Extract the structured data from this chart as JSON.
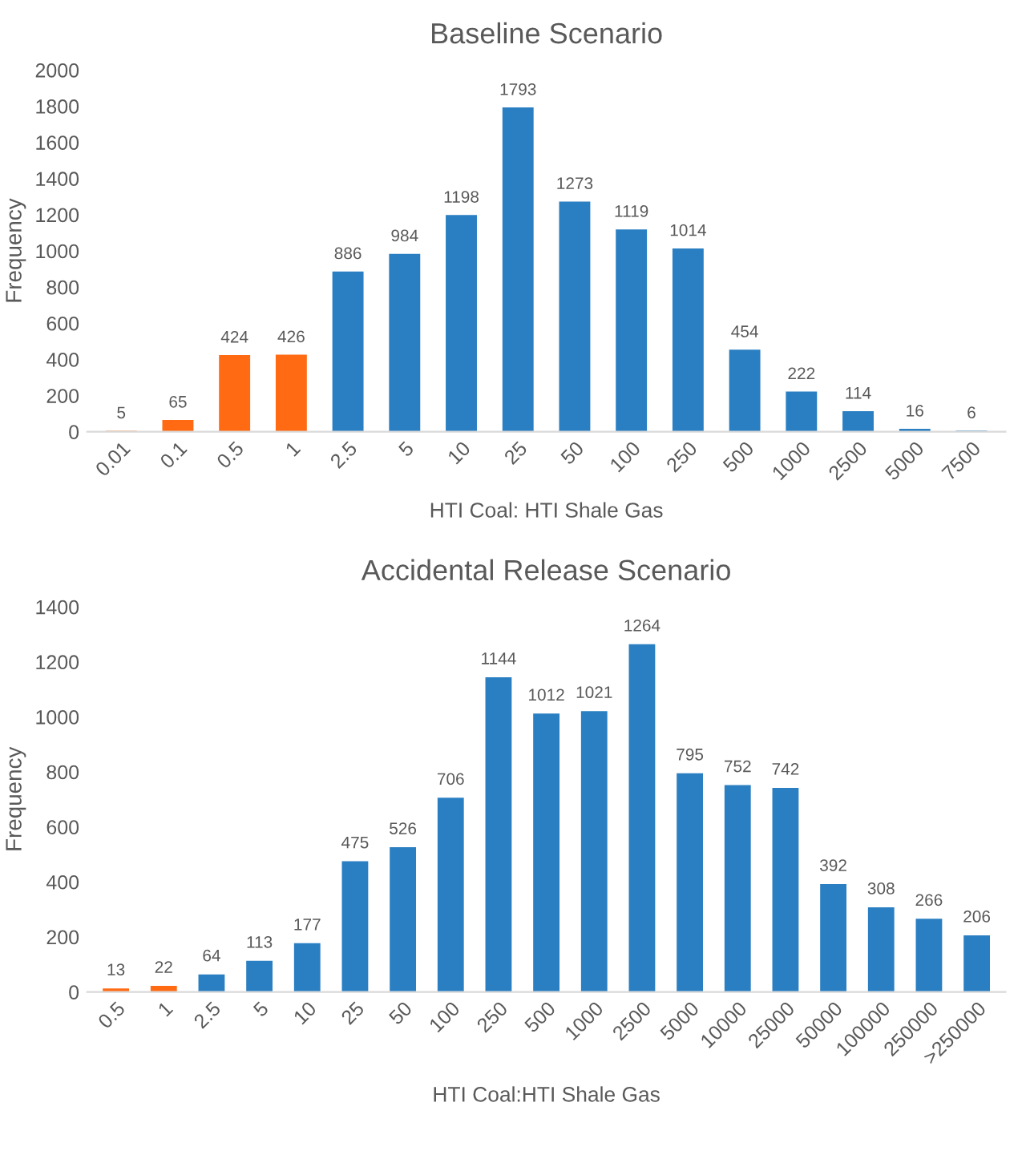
{
  "chart_data": [
    {
      "type": "bar",
      "title": "Baseline Scenario",
      "xlabel": "HTI Coal: HTI Shale Gas",
      "ylabel": "Frequency",
      "categories": [
        "0.01",
        "0.1",
        "0.5",
        "1",
        "2.5",
        "5",
        "10",
        "25",
        "50",
        "100",
        "250",
        "500",
        "1000",
        "2500",
        "5000",
        "7500"
      ],
      "values": [
        5,
        65,
        424,
        426,
        886,
        984,
        1198,
        1793,
        1273,
        1119,
        1014,
        454,
        222,
        114,
        16,
        6
      ],
      "colors": [
        "#ff6a13",
        "#ff6a13",
        "#ff6a13",
        "#ff6a13",
        "#2a7fc2",
        "#2a7fc2",
        "#2a7fc2",
        "#2a7fc2",
        "#2a7fc2",
        "#2a7fc2",
        "#2a7fc2",
        "#2a7fc2",
        "#2a7fc2",
        "#2a7fc2",
        "#2a7fc2",
        "#2a7fc2"
      ],
      "ylim": [
        0,
        2000
      ],
      "yticks": [
        0,
        200,
        400,
        600,
        800,
        1000,
        1200,
        1400,
        1600,
        1800,
        2000
      ],
      "data_labels": true,
      "grid": false
    },
    {
      "type": "bar",
      "title": "Accidental Release Scenario",
      "xlabel": "HTI Coal:HTI Shale Gas",
      "ylabel": "Frequency",
      "categories": [
        "0.5",
        "1",
        "2.5",
        "5",
        "10",
        "25",
        "50",
        "100",
        "250",
        "500",
        "1000",
        "2500",
        "5000",
        "10000",
        "25000",
        "50000",
        "100000",
        "250000",
        ">250000"
      ],
      "values": [
        13,
        22,
        64,
        113,
        177,
        475,
        526,
        706,
        1144,
        1012,
        1021,
        1264,
        795,
        752,
        742,
        392,
        308,
        266,
        206
      ],
      "colors": [
        "#ff6a13",
        "#ff6a13",
        "#2a7fc2",
        "#2a7fc2",
        "#2a7fc2",
        "#2a7fc2",
        "#2a7fc2",
        "#2a7fc2",
        "#2a7fc2",
        "#2a7fc2",
        "#2a7fc2",
        "#2a7fc2",
        "#2a7fc2",
        "#2a7fc2",
        "#2a7fc2",
        "#2a7fc2",
        "#2a7fc2",
        "#2a7fc2",
        "#2a7fc2"
      ],
      "ylim": [
        0,
        1400
      ],
      "yticks": [
        0,
        200,
        400,
        600,
        800,
        1000,
        1200,
        1400
      ],
      "data_labels": true,
      "grid": false
    }
  ]
}
